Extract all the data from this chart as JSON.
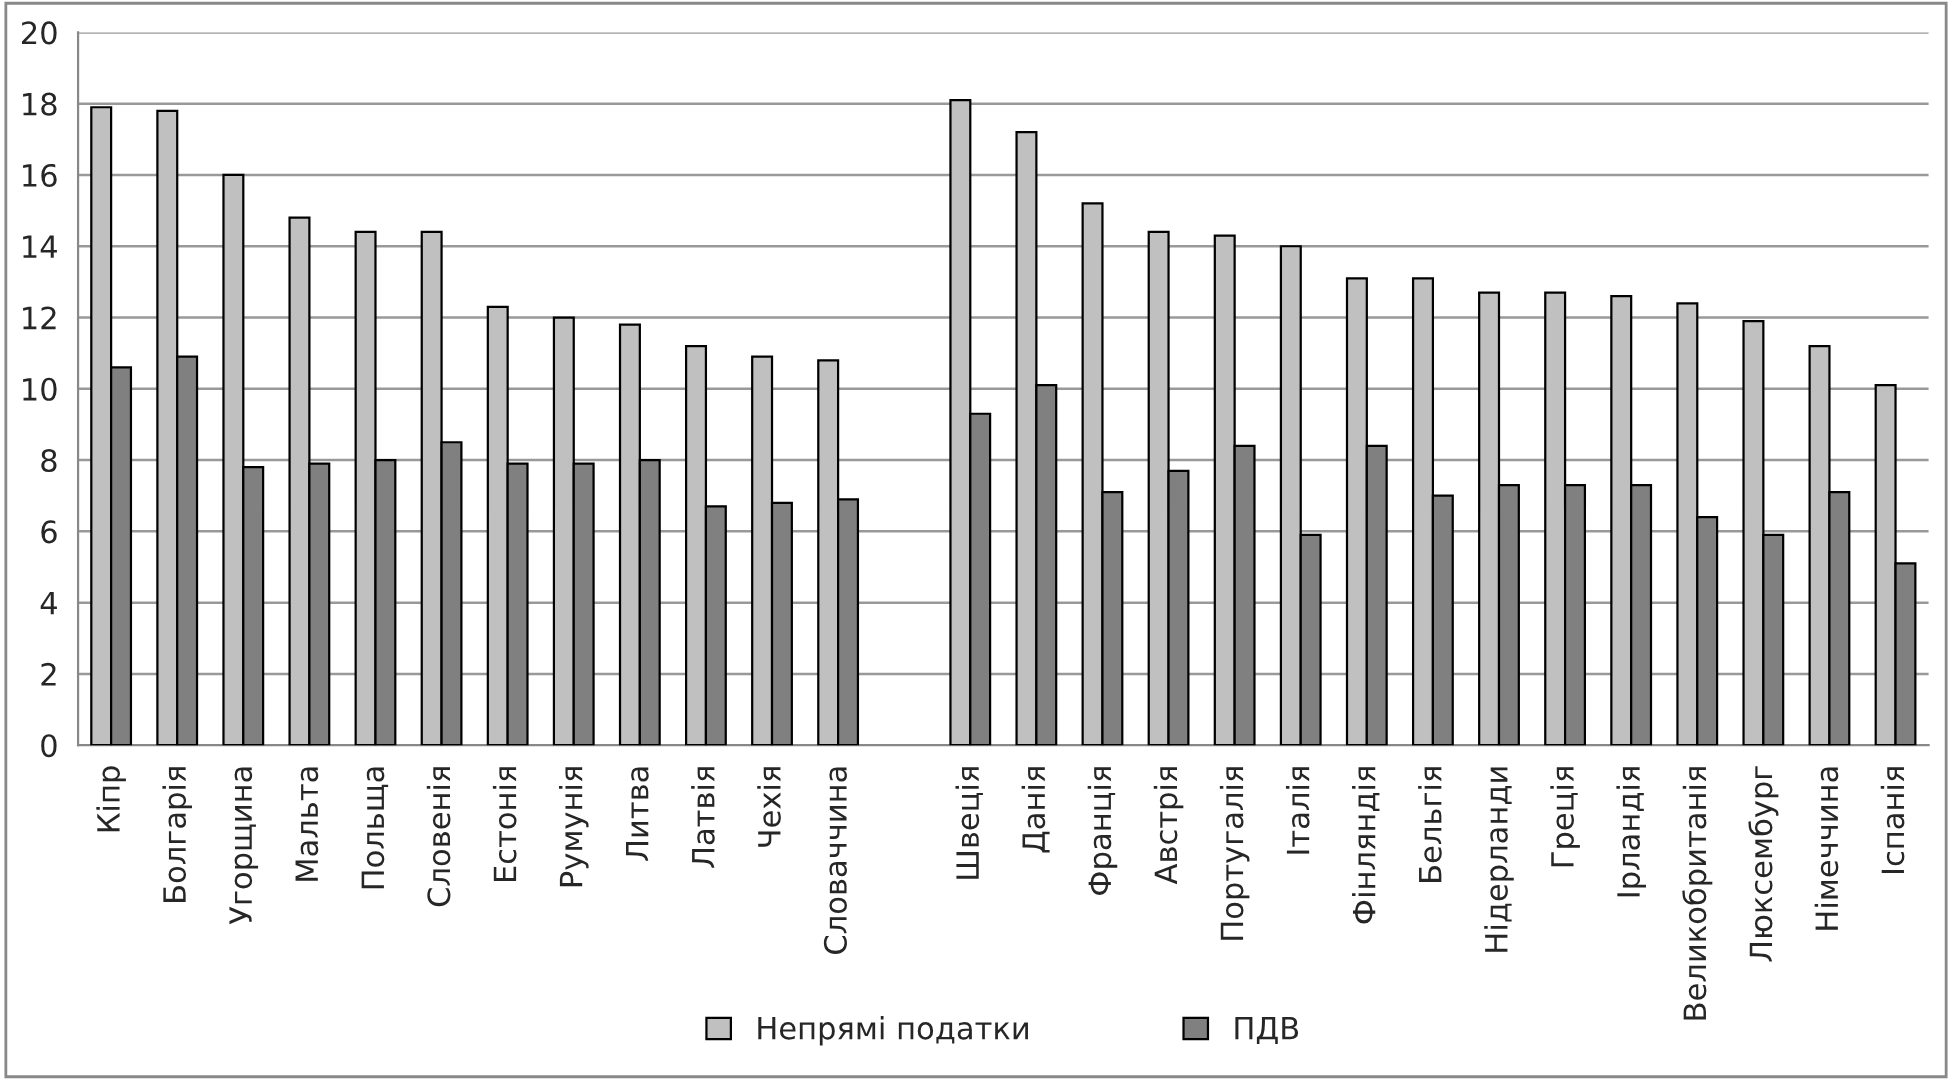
{
  "chart_data": {
    "type": "bar",
    "categories": [
      "Кіпр",
      "Болгарія",
      "Угорщина",
      "Мальта",
      "Польща",
      "Словенія",
      "Естонія",
      "Румунія",
      "Литва",
      "Латвія",
      "Чехія",
      "Словаччина",
      null,
      "Швеція",
      "Данія",
      "Франція",
      "Австрія",
      "Португалія",
      "Італія",
      "Фінляндія",
      "Бельгія",
      "Нідерланди",
      "Греція",
      "Ірландія",
      "Великобританія",
      "Люксембург",
      "Німеччина",
      "Іспанія"
    ],
    "series": [
      {
        "name": "Непрямі податки",
        "color": "#c0c0c0",
        "values": [
          17.9,
          17.8,
          16.0,
          14.8,
          14.4,
          14.4,
          12.3,
          12.0,
          11.8,
          11.2,
          10.9,
          10.8,
          null,
          18.1,
          17.2,
          15.2,
          14.4,
          14.3,
          14.0,
          13.1,
          13.1,
          12.7,
          12.7,
          12.6,
          12.4,
          11.9,
          11.2,
          10.1
        ]
      },
      {
        "name": "ПДВ",
        "color": "#808080",
        "values": [
          10.6,
          10.9,
          7.8,
          7.9,
          8.0,
          8.5,
          7.9,
          7.9,
          8.0,
          6.7,
          6.8,
          6.9,
          null,
          9.3,
          10.1,
          7.1,
          7.7,
          8.4,
          5.9,
          8.4,
          7.0,
          7.3,
          7.3,
          7.3,
          6.4,
          5.9,
          7.1,
          5.1
        ]
      }
    ],
    "ylim": [
      0,
      20
    ],
    "yticks": [
      0,
      2,
      4,
      6,
      8,
      10,
      12,
      14,
      16,
      18,
      20
    ],
    "grid": "y",
    "legend": "bottom"
  }
}
